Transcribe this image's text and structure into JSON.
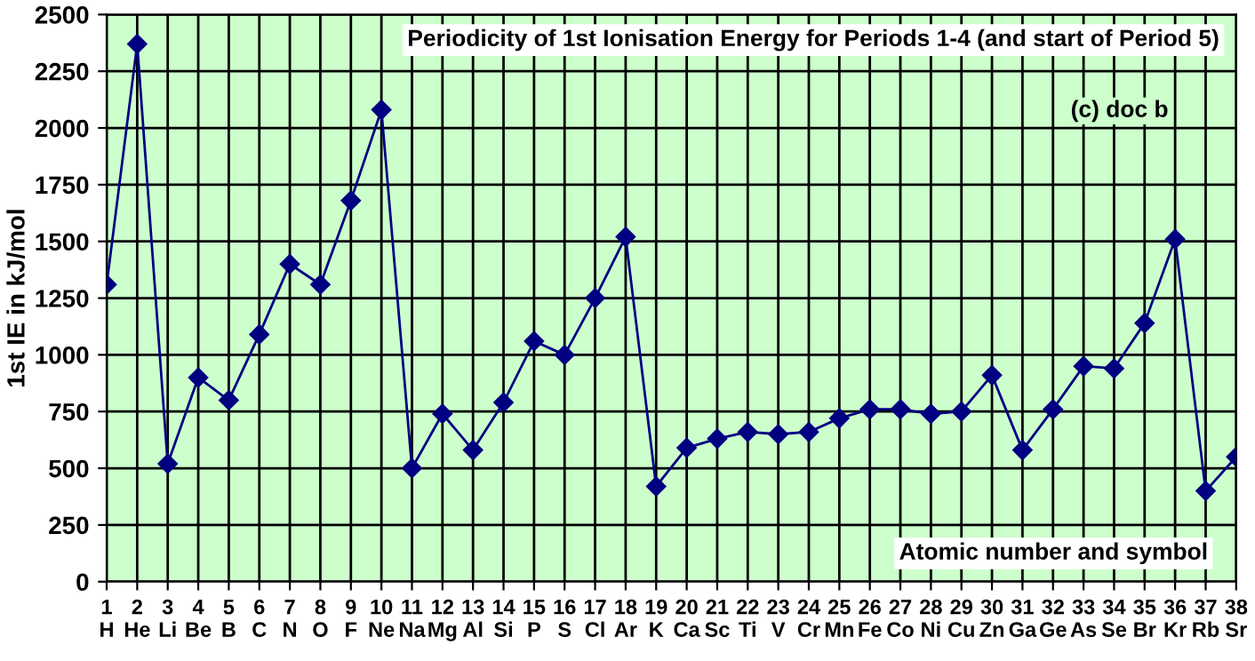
{
  "chart_data": {
    "type": "line",
    "title": "Periodicity of 1st Ionisation Energy for Periods 1-4 (and start of Period 5)",
    "xlabel": "Atomic number and symbol",
    "ylabel": "1st IE in kJ/mol",
    "annotations": [
      "(c) doc b"
    ],
    "categories": [
      "1\nH",
      "2\nHe",
      "3\nLi",
      "4\nBe",
      "5\nB",
      "6\nC",
      "7\nN",
      "8\nO",
      "9\nF",
      "10\nNe",
      "11\nNa",
      "12\nMg",
      "13\nAl",
      "14\nSi",
      "15\nP",
      "16\nS",
      "17\nCl",
      "18\nAr",
      "19\nK",
      "20\nCa",
      "21\nSc",
      "22\nTi",
      "23\nV",
      "24\nCr",
      "25\nMn",
      "26\nFe",
      "27\nCo",
      "28\nNi",
      "29\nCu",
      "30\nZn",
      "31\nGa",
      "32\nGe",
      "33\nAs",
      "34\nSe",
      "35\nBr",
      "36\nKr",
      "37\nRb",
      "38\nSr"
    ],
    "series": [
      {
        "color": "#000080",
        "values": [
          1310,
          2370,
          520,
          900,
          800,
          1090,
          1400,
          1310,
          1680,
          2080,
          500,
          740,
          580,
          790,
          1060,
          1000,
          1250,
          1520,
          420,
          590,
          630,
          660,
          650,
          660,
          720,
          760,
          760,
          740,
          750,
          910,
          580,
          760,
          950,
          940,
          1140,
          1510,
          400,
          550
        ]
      }
    ],
    "ylim": [
      0,
      2500
    ],
    "yticks": [
      0,
      250,
      500,
      750,
      1000,
      1250,
      1500,
      1750,
      2000,
      2250,
      2500
    ],
    "grid": true,
    "marker": "diamond",
    "line_style": "solid"
  }
}
